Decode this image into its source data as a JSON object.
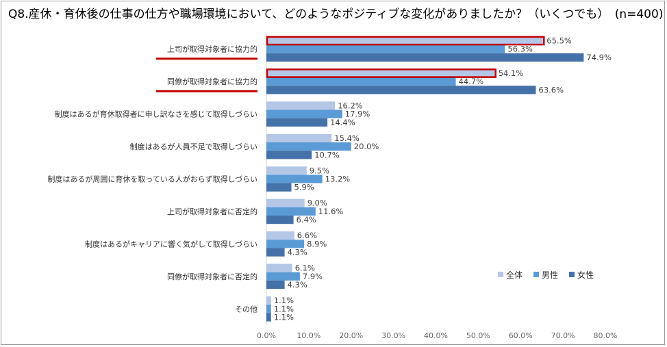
{
  "chart_data": {
    "type": "bar",
    "orientation": "horizontal",
    "title": "Q8.産休・育休後の仕事の仕方や職場環境において、どのようなポジティブな変化がありましたか？（いくつでも）　(n=400)",
    "categories": [
      "上司が取得対象者に協力的",
      "同僚が取得対象者に協力的",
      "制度はあるが育休取得者に申し訳なさを感じて取得しづらい",
      "制度はあるが人員不足で取得しづらい",
      "制度はあるが周囲に育休を取っている人がおらず取得しづらい",
      "上司が取得対象者に否定的",
      "制度はあるがキャリアに響く気がして取得しづらい",
      "同僚が取得対象者に否定的",
      "その他"
    ],
    "series": [
      {
        "name": "全体",
        "color": "#b4c7e7",
        "values": [
          65.5,
          54.1,
          16.2,
          15.4,
          9.5,
          9.0,
          6.6,
          6.1,
          1.1
        ],
        "labels": [
          "65.5%",
          "54.1%",
          "16.2%",
          "15.4%",
          "9.5%",
          "9.0%",
          "6.6%",
          "6.1%",
          "1.1%"
        ]
      },
      {
        "name": "男性",
        "color": "#5b9bd5",
        "values": [
          56.3,
          44.7,
          17.9,
          20.0,
          13.2,
          11.6,
          8.9,
          7.9,
          1.1
        ],
        "labels": [
          "56.3%",
          "44.7%",
          "17.9%",
          "20.0%",
          "13.2%",
          "11.6%",
          "8.9%",
          "7.9%",
          "1.1%"
        ]
      },
      {
        "name": "女性",
        "color": "#4472a8",
        "values": [
          74.9,
          63.6,
          14.4,
          10.7,
          5.9,
          6.4,
          4.3,
          4.3,
          1.1
        ],
        "labels": [
          "74.9%",
          "63.6%",
          "14.4%",
          "10.7%",
          "5.9%",
          "6.4%",
          "4.3%",
          "4.3%",
          "1.1%"
        ]
      }
    ],
    "xlim": [
      0,
      80
    ],
    "xticks": [
      "0.0%",
      "10.0%",
      "20.0%",
      "30.0%",
      "40.0%",
      "50.0%",
      "60.0%",
      "70.0%",
      "80.0%"
    ],
    "highlighted_categories": [
      0,
      1
    ],
    "highlight_color": "#c00000",
    "gridlines": false,
    "legend_position": "bottom-right"
  }
}
